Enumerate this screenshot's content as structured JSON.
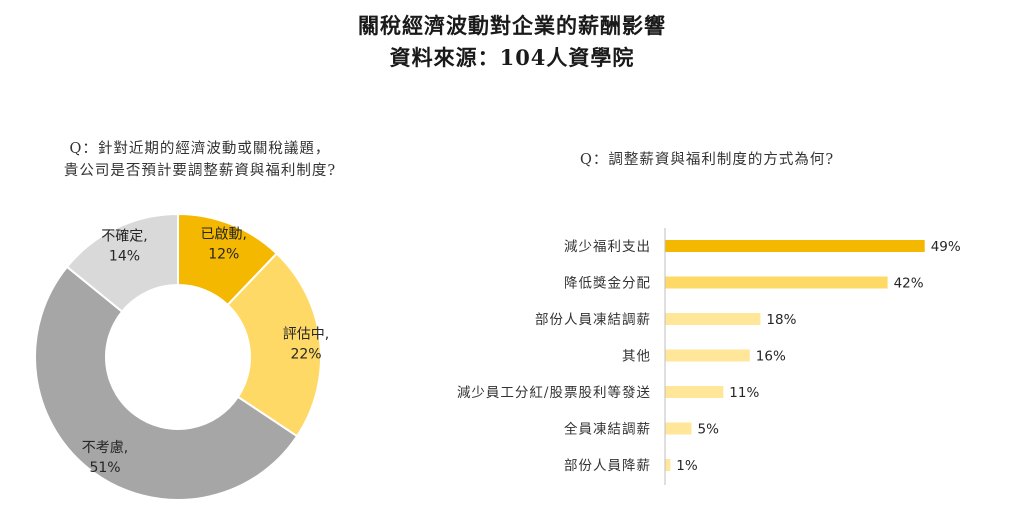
{
  "header": {
    "title": "關稅經濟波動對企業的薪酬影響",
    "subtitle": "資料來源：104人資學院"
  },
  "colors": {
    "gold": "#F5B800",
    "yellow": "#FFD966",
    "gray": "#A6A6A6",
    "light_gray": "#D9D9D9",
    "bar_strong": "#F5B800",
    "bar_mid": "#FFD966",
    "bar_light": "#FFE699"
  },
  "chart_data": [
    {
      "type": "pie",
      "variant": "donut",
      "question_line1": "Q：針對近期的經濟波動或關稅議題，",
      "question_line2": "貴公司是否預計要調整薪資與福利制度?",
      "slices": [
        {
          "label": "已啟動,",
          "value": 12,
          "value_label": "12%",
          "color": "#F5B800"
        },
        {
          "label": "評估中,",
          "value": 22,
          "value_label": "22%",
          "color": "#FFD966"
        },
        {
          "label": "不考慮,",
          "value": 51,
          "value_label": "51%",
          "color": "#A6A6A6"
        },
        {
          "label": "不確定,",
          "value": 14,
          "value_label": "14%",
          "color": "#D9D9D9"
        }
      ]
    },
    {
      "type": "bar",
      "orientation": "horizontal",
      "question": "Q：調整薪資與福利制度的方式為何?",
      "categories": [
        "減少福利支出",
        "降低獎金分配",
        "部份人員凍結調薪",
        "其他",
        "減少員工分紅/股票股利等發送",
        "全員凍結調薪",
        "部份人員降薪"
      ],
      "values": [
        49,
        42,
        18,
        16,
        11,
        5,
        1
      ],
      "value_labels": [
        "49%",
        "42%",
        "18%",
        "16%",
        "11%",
        "5%",
        "1%"
      ],
      "bar_colors": [
        "#F5B800",
        "#FFD966",
        "#FFE699",
        "#FFE699",
        "#FFE699",
        "#FFE699",
        "#FFE699"
      ],
      "xlim": [
        0,
        50
      ]
    }
  ]
}
